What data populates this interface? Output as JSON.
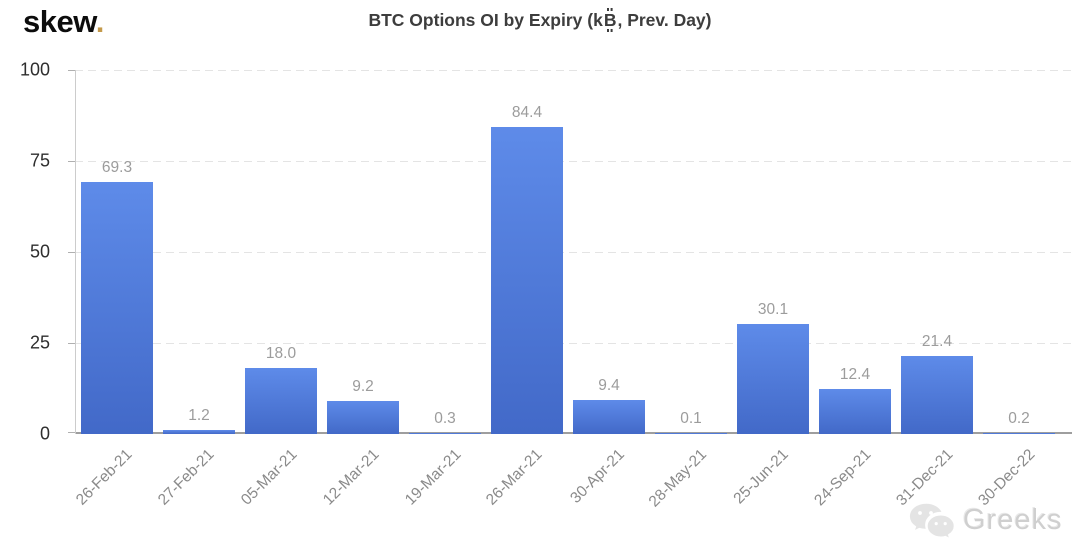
{
  "header": {
    "logo_text": "skew",
    "logo_dot": ".",
    "title_full": "BTC Options OI by Expiry (k₿, Prev. Day)",
    "title_part1": "BTC Options OI by Expiry (k",
    "btc_letter": "B",
    "title_part2": ", Prev. Day)"
  },
  "watermark": {
    "text": "Greeks",
    "icon": "wechat-icon"
  },
  "colors": {
    "bar_top": "#5e8be9",
    "bar_bottom": "#4269c8",
    "logo_dot": "#c49a4b",
    "gridline": "#e4e4e4",
    "baseline": "#9e9e9e",
    "value_label": "#9c9c9c",
    "x_label": "#8a8a8a",
    "y_label": "#2e2e2e",
    "title": "#3d3d3d"
  },
  "chart_data": {
    "type": "bar",
    "title": "BTC Options OI by Expiry (k₿, Prev. Day)",
    "categories": [
      "26-Feb-21",
      "27-Feb-21",
      "05-Mar-21",
      "12-Mar-21",
      "19-Mar-21",
      "26-Mar-21",
      "30-Apr-21",
      "28-May-21",
      "25-Jun-21",
      "24-Sep-21",
      "31-Dec-21",
      "30-Dec-22"
    ],
    "values": [
      69.3,
      1.2,
      18.0,
      9.2,
      0.3,
      84.4,
      9.4,
      0.1,
      30.1,
      12.4,
      21.4,
      0.2
    ],
    "value_label_format": "one-decimal",
    "xlabel": "",
    "ylabel": "",
    "ylim": [
      0,
      100
    ],
    "yticks": [
      0,
      25,
      50,
      75,
      100
    ],
    "grid": "horizontal-dashed",
    "legend": "none",
    "value_labels": true
  }
}
